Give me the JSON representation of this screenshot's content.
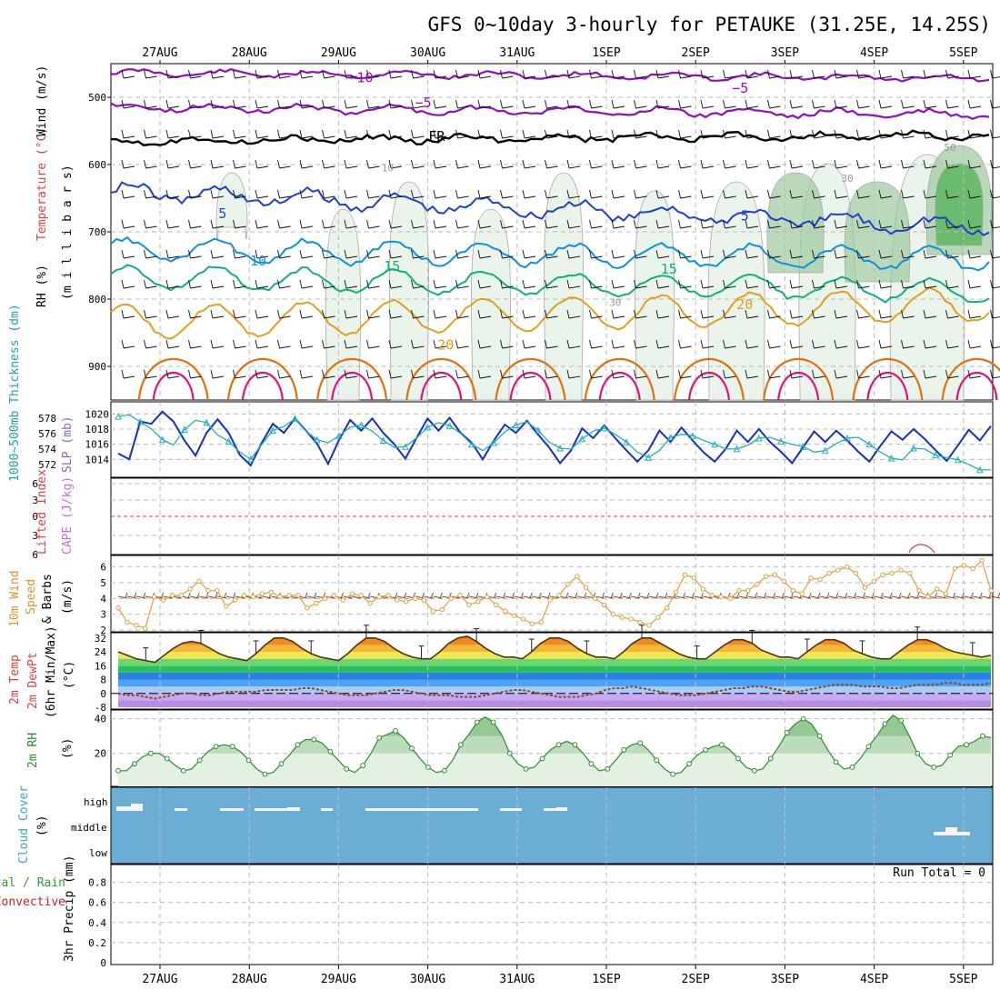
{
  "title": "GFS 0~10day 3-hourly for PETAUKE (31.25E, 14.25S)",
  "colors": {
    "temp_minus10": "#9010c0",
    "temp_minus5": "#9010c0",
    "freezing": "#000000",
    "temp_5": "#2040d0",
    "temp_10": "#1090e0",
    "temp_15": "#10b080",
    "temp_20": "#e0a020",
    "temp_25": "#e07010",
    "temp_30": "#e01080",
    "rh_light": "#e6f2e6",
    "rh_mid": "#9dc99d",
    "rh_dark": "#4caf50",
    "slp": "#1830c0",
    "thickness": "#20b0b8",
    "lifted_zero": "#d04040",
    "wind_speed": "#e0a040",
    "wind_barb": "#7a4a2a",
    "cloud_bg": "#6aaed6",
    "rh2m": "#2e8b2e",
    "precip_total": "#2e9b2e",
    "precip_conv": "#d02020"
  },
  "chart_data": [
    {
      "type": "line",
      "name": "upper-air",
      "dates": [
        "27AUG",
        "28AUG",
        "29AUG",
        "30AUG",
        "31AUG",
        "1SEP",
        "2SEP",
        "3SEP",
        "4SEP",
        "5SEP"
      ],
      "ylabel_parts": [
        "RH (%)",
        "Temperature (°C)",
        "Wind (m/s)",
        "(m i l l i b a r s)"
      ],
      "ylim": [
        950,
        450
      ],
      "yticks": [
        500,
        600,
        700,
        800,
        900
      ],
      "contour_labels": [
        {
          "text": "−10",
          "day": 2.25,
          "p": 478,
          "color": "#9010c0"
        },
        {
          "text": "−5",
          "day": 2.95,
          "p": 515,
          "color": "#9010c0"
        },
        {
          "text": "−5",
          "day": 6.5,
          "p": 493,
          "color": "#9010c0"
        },
        {
          "text": "FR",
          "day": 3.1,
          "p": 565,
          "color": "#000000"
        },
        {
          "text": "5",
          "day": 0.7,
          "p": 680,
          "color": "#2040d0"
        },
        {
          "text": "5",
          "day": 6.55,
          "p": 683,
          "color": "#2040d0"
        },
        {
          "text": "10",
          "day": 1.1,
          "p": 750,
          "color": "#1090e0"
        },
        {
          "text": "15",
          "day": 2.6,
          "p": 758,
          "color": "#10b080"
        },
        {
          "text": "15",
          "day": 5.7,
          "p": 762,
          "color": "#10b080"
        },
        {
          "text": "20",
          "day": 3.2,
          "p": 875,
          "color": "#e0a020"
        },
        {
          "text": "20",
          "day": 6.55,
          "p": 815,
          "color": "#e0a020"
        },
        {
          "text": "30",
          "day": 5.1,
          "p": 810,
          "color": "#999999"
        },
        {
          "text": "10",
          "day": 2.55,
          "p": 610,
          "color": "#999999"
        },
        {
          "text": "30",
          "day": 7.7,
          "p": 626,
          "color": "#999999"
        },
        {
          "text": "50",
          "day": 8.85,
          "p": 580,
          "color": "#999999"
        }
      ]
    },
    {
      "type": "line",
      "name": "slp-thickness",
      "ylabel": "SLP (mb)",
      "ylabel2": "1000~500mb Thickness (dm)",
      "yticks_right": [
        1014,
        1016,
        1018,
        1020
      ],
      "yticks_left": [
        572,
        574,
        576,
        578
      ],
      "series": [
        {
          "name": "SLP",
          "values": [
            1014.8,
            1014.0,
            1019.0,
            1018.7,
            1020.3,
            1019.0,
            1016.5,
            1014.5,
            1017.5,
            1019.3,
            1017.5,
            1014.6,
            1013.2,
            1016.2,
            1018.7,
            1017.5,
            1019.4,
            1017.8,
            1016.1,
            1013.4,
            1016.6,
            1019.2,
            1017.8,
            1019.4,
            1017.5,
            1016.0,
            1014.1,
            1016.8,
            1019.4,
            1017.8,
            1019.5,
            1017.5,
            1016.2,
            1014.0,
            1016.5,
            1018.6,
            1017.5,
            1019.1,
            1017.3,
            1015.6,
            1013.5,
            1015.2,
            1018.1,
            1016.8,
            1018.5,
            1016.8,
            1015.2,
            1013.7,
            1015.2,
            1017.8,
            1016.3,
            1018.2,
            1016.5,
            1014.9,
            1013.7,
            1015.4,
            1017.8,
            1016.3,
            1018.0,
            1016.3,
            1015.0,
            1013.5,
            1015.6,
            1017.7,
            1016.3,
            1017.8,
            1016.5,
            1015.0,
            1013.7,
            1015.8,
            1017.7,
            1016.6,
            1018.0,
            1016.7,
            1015.2,
            1013.8,
            1015.8,
            1017.9,
            1016.5,
            1018.4
          ]
        },
        {
          "name": "Thickness",
          "values": [
            578.2,
            578.4,
            577.5,
            576.6,
            575.2,
            574.5,
            576.5,
            577.7,
            577.4,
            575.8,
            575.0,
            573.6,
            572.7,
            574.6,
            576.4,
            576.9,
            577.9,
            576.3,
            575.2,
            574.8,
            575.7,
            576.8,
            577.1,
            576.3,
            575.1,
            574.2,
            574.3,
            575.4,
            576.8,
            577.4,
            577.0,
            576.0,
            574.6,
            573.8,
            574.8,
            576.2,
            577.1,
            577.5,
            576.4,
            574.9,
            574.1,
            574.0,
            575.3,
            576.3,
            576.7,
            575.9,
            574.9,
            573.6,
            572.9,
            573.8,
            575.5,
            575.9,
            575.7,
            575.1,
            574.6,
            574.0,
            574.0,
            574.5,
            575.4,
            575.5,
            575.0,
            574.6,
            574.3,
            573.6,
            573.8,
            574.7,
            575.4,
            575.5,
            574.6,
            573.6,
            572.8,
            572.6,
            574.1,
            574.0,
            573.2,
            572.9,
            572.6,
            572.0,
            571.3,
            571.3
          ]
        }
      ]
    },
    {
      "type": "line",
      "name": "cape-lifted",
      "ylabel": "CAPE (J/kg)",
      "ylabel2": "Lifted Index",
      "yticks": [
        "6",
        "3",
        "0",
        "3",
        "6"
      ],
      "series": [
        {
          "name": "Lifted Index",
          "values": [
            0
          ]
        }
      ]
    },
    {
      "type": "line",
      "name": "wind10m",
      "ylabel": "10m Wind Speed & Barbs (m/s)",
      "ylabel_parts": [
        "10m Wind",
        "Speed",
        "& Barbs",
        "(m/s)"
      ],
      "ylim": [
        2,
        7
      ],
      "yticks": [
        2,
        3,
        4,
        5,
        6
      ],
      "series": [
        {
          "name": "Speed",
          "values": [
            3.4,
            2.5,
            2.3,
            2.1,
            4.1,
            3.9,
            4.2,
            4.2,
            4.6,
            5.1,
            4.5,
            4.5,
            3.5,
            3.9,
            4.2,
            4.1,
            4.3,
            4.4,
            4.1,
            4.2,
            4.2,
            3.4,
            3.7,
            4.0,
            4.2,
            3.9,
            4.3,
            4.2,
            3.7,
            4.1,
            4.2,
            3.9,
            3.8,
            4.0,
            3.9,
            3.2,
            3.3,
            4.0,
            4.2,
            3.6,
            3.8,
            4.1,
            3.6,
            3.2,
            2.9,
            2.7,
            2.4,
            2.5,
            3.9,
            4.2,
            4.9,
            5.4,
            4.7,
            4.0,
            3.6,
            3.0,
            2.8,
            2.7,
            2.5,
            2.3,
            2.8,
            3.4,
            4.4,
            5.5,
            5.3,
            4.6,
            4.2,
            4.1,
            4.0,
            4.5,
            4.5,
            4.9,
            5.4,
            5.5,
            5.1,
            4.5,
            4.3,
            5.3,
            5.2,
            5.6,
            5.8,
            6.0,
            5.6,
            4.7,
            5.1,
            5.5,
            5.6,
            5.8,
            5.6,
            4.5,
            4.1,
            4.6,
            4.3,
            5.9,
            6.1,
            5.9,
            6.4,
            4.5
          ]
        }
      ]
    },
    {
      "type": "area",
      "name": "temp2m",
      "ylabel_parts": [
        "2m Temp",
        "2m DewPt",
        "(6hr Min/Max)",
        "(°C)"
      ],
      "ylim": [
        -8,
        34
      ],
      "yticks": [
        -8,
        0,
        8,
        16,
        24,
        32
      ],
      "series": [
        {
          "name": "2m Temp",
          "values": [
            24,
            22,
            20,
            19,
            18,
            22,
            26,
            29,
            30,
            29,
            26,
            23,
            21,
            20,
            19,
            23,
            28,
            32,
            32,
            30,
            26,
            23,
            21,
            20,
            19,
            23,
            28,
            32,
            32,
            30,
            26,
            23,
            21,
            20,
            20,
            24,
            29,
            32,
            33,
            30,
            26,
            23,
            21,
            21,
            20,
            24,
            29,
            32,
            32,
            30,
            26,
            23,
            21,
            21,
            20,
            24,
            29,
            32,
            32,
            29,
            26,
            23,
            21,
            20,
            20,
            24,
            28,
            31,
            31,
            29,
            25,
            23,
            21,
            21,
            20,
            24,
            28,
            31,
            31,
            29,
            25,
            23,
            21,
            20,
            20,
            24,
            28,
            31,
            31,
            29,
            26,
            24,
            23,
            22,
            21,
            22
          ]
        },
        {
          "name": "2m DewPt",
          "values": [
            0,
            -1,
            -1,
            -2,
            -3,
            -2,
            -1,
            0,
            0,
            -1,
            -1,
            0,
            1,
            1,
            1,
            1,
            2,
            2,
            2,
            2,
            3,
            3,
            2,
            1,
            0,
            -1,
            -1,
            -1,
            0,
            1,
            2,
            2,
            1,
            0,
            -1,
            -1,
            -1,
            -2,
            -2,
            -2,
            -1,
            0,
            1,
            2,
            2,
            1,
            0,
            -1,
            -2,
            -2,
            -2,
            -1,
            0,
            2,
            3,
            3,
            4,
            3,
            2,
            1,
            0,
            -1,
            -1,
            -1,
            0,
            1,
            2,
            3,
            3,
            4,
            4,
            3,
            2,
            1,
            1,
            2,
            3,
            4,
            5,
            5,
            5,
            4,
            4,
            4,
            3,
            3,
            4,
            5,
            5,
            5,
            6,
            6,
            5,
            5,
            5,
            6
          ]
        }
      ]
    },
    {
      "type": "area",
      "name": "rh2m",
      "ylabel": "2m RH",
      "yunit": "(%)",
      "yticks": [
        20,
        40
      ],
      "series": [
        {
          "name": "2m RH",
          "values": [
            10,
            10,
            14,
            18,
            20,
            20,
            17,
            13,
            10,
            11,
            16,
            21,
            24,
            25,
            24,
            21,
            16,
            11,
            8,
            9,
            14,
            19,
            25,
            28,
            28,
            26,
            21,
            16,
            11,
            9,
            13,
            20,
            29,
            31,
            33,
            29,
            23,
            17,
            12,
            9,
            10,
            16,
            25,
            31,
            38,
            41,
            38,
            31,
            20,
            14,
            11,
            12,
            17,
            22,
            25,
            27,
            25,
            20,
            14,
            10,
            11,
            16,
            22,
            25,
            26,
            22,
            16,
            11,
            8,
            9,
            14,
            19,
            22,
            24,
            25,
            22,
            17,
            12,
            10,
            11,
            17,
            24,
            32,
            37,
            40,
            37,
            30,
            22,
            15,
            11,
            12,
            17,
            24,
            30,
            37,
            42,
            39,
            30,
            20,
            14,
            12,
            13,
            19,
            24,
            25,
            27,
            30,
            29
          ]
        }
      ]
    },
    {
      "type": "area",
      "name": "cloud-cover",
      "ylabel": "Cloud Cover",
      "yunit": "(%)",
      "levels": [
        "high",
        "middle",
        "low"
      ]
    },
    {
      "type": "bar",
      "name": "precip",
      "ylabel": "3hr Precip (mm)",
      "legend": [
        "Total / Rain",
        "Convective"
      ],
      "ylim": [
        0,
        1
      ],
      "yticks": [
        "0",
        "0.2",
        "0.4",
        "0.6",
        "0.8"
      ],
      "run_total": "Run Total = 0",
      "values": [
        0
      ]
    }
  ]
}
